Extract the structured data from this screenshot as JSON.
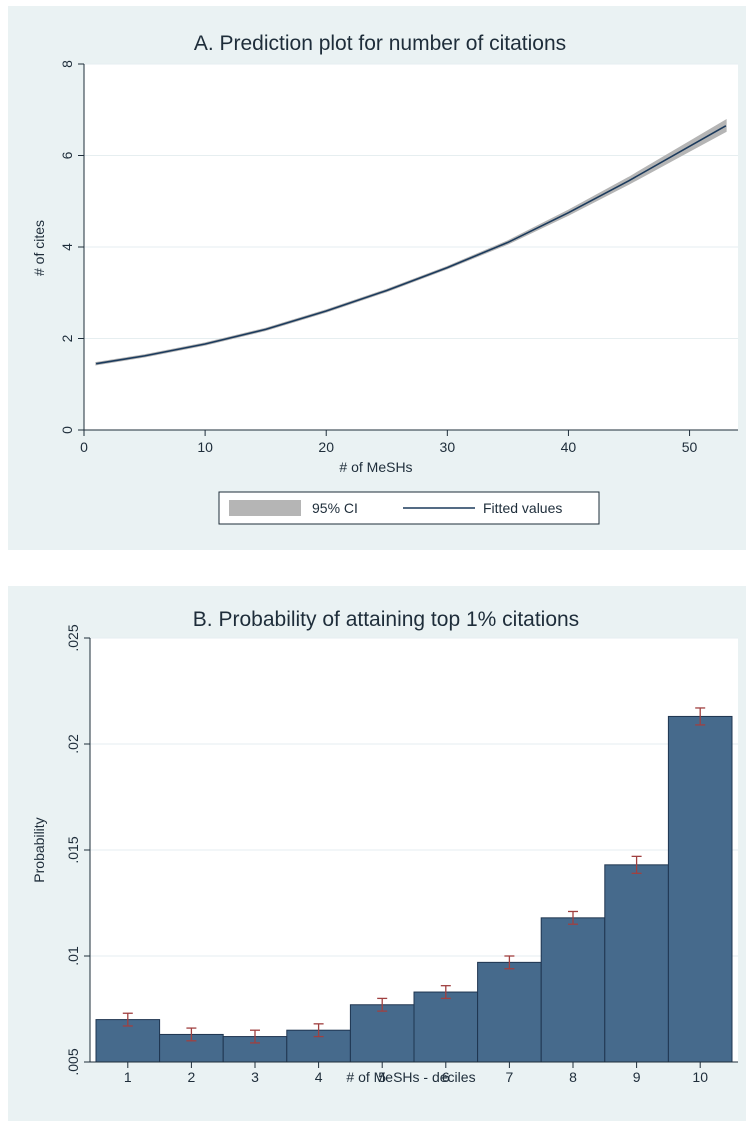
{
  "chart_data": [
    {
      "type": "line",
      "title": "A. Prediction plot for number of citations",
      "xlabel": "# of MeSHs",
      "ylabel": "# of cites",
      "xlim": [
        0,
        54
      ],
      "ylim": [
        0,
        8
      ],
      "xticks": [
        "0",
        "10",
        "20",
        "30",
        "40",
        "50"
      ],
      "yticks": [
        "0",
        "2",
        "4",
        "6",
        "8"
      ],
      "grid": true,
      "legend": {
        "position": "bottom",
        "entries": [
          "95% CI",
          "Fitted values"
        ]
      },
      "series": [
        {
          "name": "Fitted values",
          "color": "#1b3a5c",
          "x": [
            1,
            5,
            10,
            15,
            20,
            25,
            30,
            35,
            40,
            45,
            50,
            53
          ],
          "y": [
            1.45,
            1.62,
            1.88,
            2.2,
            2.6,
            3.05,
            3.55,
            4.1,
            4.75,
            5.45,
            6.2,
            6.65
          ]
        },
        {
          "name": "95% CI",
          "color": "#b5b5b5",
          "x": [
            1,
            5,
            10,
            15,
            20,
            25,
            30,
            35,
            40,
            45,
            50,
            53
          ],
          "lower": [
            1.43,
            1.6,
            1.86,
            2.18,
            2.58,
            3.03,
            3.53,
            4.07,
            4.7,
            5.38,
            6.1,
            6.53
          ],
          "upper": [
            1.47,
            1.64,
            1.9,
            2.22,
            2.62,
            3.07,
            3.57,
            4.13,
            4.8,
            5.52,
            6.3,
            6.77
          ]
        }
      ]
    },
    {
      "type": "bar",
      "title": "B. Probability of attaining top 1% citations",
      "xlabel": "# of MeSHs - deciles",
      "ylabel": "Probability",
      "categories": [
        "1",
        "2",
        "3",
        "4",
        "5",
        "6",
        "7",
        "8",
        "9",
        "10"
      ],
      "values": [
        0.007,
        0.0063,
        0.0062,
        0.0065,
        0.0077,
        0.0083,
        0.0097,
        0.0118,
        0.0143,
        0.0213
      ],
      "errors": [
        0.0003,
        0.0003,
        0.0003,
        0.0003,
        0.0003,
        0.0003,
        0.0003,
        0.0003,
        0.0004,
        0.0004
      ],
      "ylim": [
        0.005,
        0.025
      ],
      "yticks": [
        ".005",
        ".01",
        ".015",
        ".02",
        ".025"
      ],
      "grid": true,
      "bar_color": "#466a8c",
      "error_color": "#a04040"
    }
  ]
}
